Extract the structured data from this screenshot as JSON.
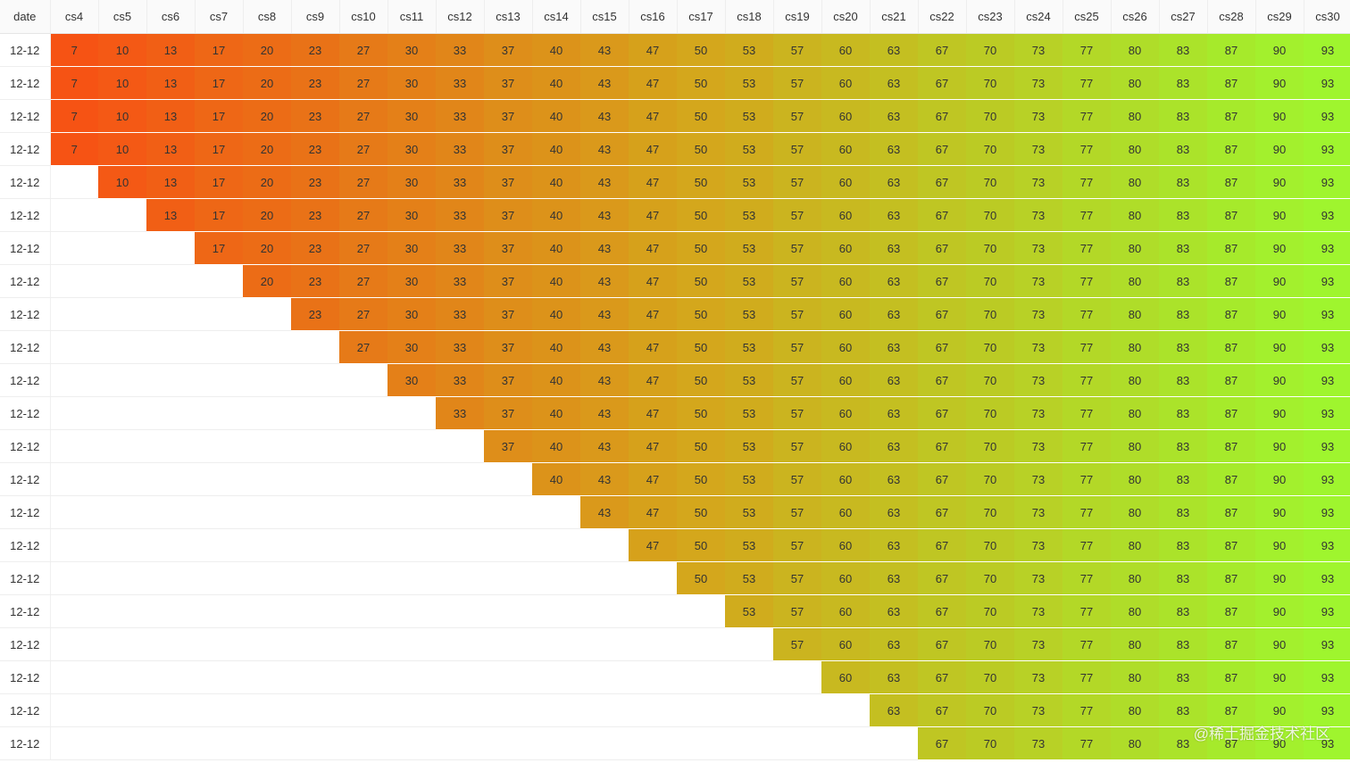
{
  "table": {
    "header": [
      "date",
      "cs4",
      "cs5",
      "cs6",
      "cs7",
      "cs8",
      "cs9",
      "cs10",
      "cs11",
      "cs12",
      "cs13",
      "cs14",
      "cs15",
      "cs16",
      "cs17",
      "cs18",
      "cs19",
      "cs20",
      "cs21",
      "cs22",
      "cs23",
      "cs24",
      "cs25",
      "cs26",
      "cs27",
      "cs28",
      "cs29",
      "cs30"
    ],
    "rows": [
      {
        "date": "12-12",
        "values": [
          "7",
          "10",
          "13",
          "17",
          "20",
          "23",
          "27",
          "30",
          "33",
          "37",
          "40",
          "43",
          "47",
          "50",
          "53",
          "57",
          "60",
          "63",
          "67",
          "70",
          "73",
          "77",
          "80",
          "83",
          "87",
          "90",
          "93"
        ]
      },
      {
        "date": "12-12",
        "values": [
          "7",
          "10",
          "13",
          "17",
          "20",
          "23",
          "27",
          "30",
          "33",
          "37",
          "40",
          "43",
          "47",
          "50",
          "53",
          "57",
          "60",
          "63",
          "67",
          "70",
          "73",
          "77",
          "80",
          "83",
          "87",
          "90",
          "93"
        ]
      },
      {
        "date": "12-12",
        "values": [
          "7",
          "10",
          "13",
          "17",
          "20",
          "23",
          "27",
          "30",
          "33",
          "37",
          "40",
          "43",
          "47",
          "50",
          "53",
          "57",
          "60",
          "63",
          "67",
          "70",
          "73",
          "77",
          "80",
          "83",
          "87",
          "90",
          "93"
        ]
      },
      {
        "date": "12-12",
        "values": [
          "7",
          "10",
          "13",
          "17",
          "20",
          "23",
          "27",
          "30",
          "33",
          "37",
          "40",
          "43",
          "47",
          "50",
          "53",
          "57",
          "60",
          "63",
          "67",
          "70",
          "73",
          "77",
          "80",
          "83",
          "87",
          "90",
          "93"
        ]
      },
      {
        "date": "12-12",
        "values": [
          "",
          "10",
          "13",
          "17",
          "20",
          "23",
          "27",
          "30",
          "33",
          "37",
          "40",
          "43",
          "47",
          "50",
          "53",
          "57",
          "60",
          "63",
          "67",
          "70",
          "73",
          "77",
          "80",
          "83",
          "87",
          "90",
          "93"
        ]
      },
      {
        "date": "12-12",
        "values": [
          "",
          "",
          "13",
          "17",
          "20",
          "23",
          "27",
          "30",
          "33",
          "37",
          "40",
          "43",
          "47",
          "50",
          "53",
          "57",
          "60",
          "63",
          "67",
          "70",
          "73",
          "77",
          "80",
          "83",
          "87",
          "90",
          "93"
        ]
      },
      {
        "date": "12-12",
        "values": [
          "",
          "",
          "",
          "17",
          "20",
          "23",
          "27",
          "30",
          "33",
          "37",
          "40",
          "43",
          "47",
          "50",
          "53",
          "57",
          "60",
          "63",
          "67",
          "70",
          "73",
          "77",
          "80",
          "83",
          "87",
          "90",
          "93"
        ]
      },
      {
        "date": "12-12",
        "values": [
          "",
          "",
          "",
          "",
          "20",
          "23",
          "27",
          "30",
          "33",
          "37",
          "40",
          "43",
          "47",
          "50",
          "53",
          "57",
          "60",
          "63",
          "67",
          "70",
          "73",
          "77",
          "80",
          "83",
          "87",
          "90",
          "93"
        ]
      },
      {
        "date": "12-12",
        "values": [
          "",
          "",
          "",
          "",
          "",
          "23",
          "27",
          "30",
          "33",
          "37",
          "40",
          "43",
          "47",
          "50",
          "53",
          "57",
          "60",
          "63",
          "67",
          "70",
          "73",
          "77",
          "80",
          "83",
          "87",
          "90",
          "93"
        ]
      },
      {
        "date": "12-12",
        "values": [
          "",
          "",
          "",
          "",
          "",
          "",
          "27",
          "30",
          "33",
          "37",
          "40",
          "43",
          "47",
          "50",
          "53",
          "57",
          "60",
          "63",
          "67",
          "70",
          "73",
          "77",
          "80",
          "83",
          "87",
          "90",
          "93"
        ]
      },
      {
        "date": "12-12",
        "values": [
          "",
          "",
          "",
          "",
          "",
          "",
          "",
          "30",
          "33",
          "37",
          "40",
          "43",
          "47",
          "50",
          "53",
          "57",
          "60",
          "63",
          "67",
          "70",
          "73",
          "77",
          "80",
          "83",
          "87",
          "90",
          "93"
        ]
      },
      {
        "date": "12-12",
        "values": [
          "",
          "",
          "",
          "",
          "",
          "",
          "",
          "",
          "33",
          "37",
          "40",
          "43",
          "47",
          "50",
          "53",
          "57",
          "60",
          "63",
          "67",
          "70",
          "73",
          "77",
          "80",
          "83",
          "87",
          "90",
          "93"
        ]
      },
      {
        "date": "12-12",
        "values": [
          "",
          "",
          "",
          "",
          "",
          "",
          "",
          "",
          "",
          "37",
          "40",
          "43",
          "47",
          "50",
          "53",
          "57",
          "60",
          "63",
          "67",
          "70",
          "73",
          "77",
          "80",
          "83",
          "87",
          "90",
          "93"
        ]
      },
      {
        "date": "12-12",
        "values": [
          "",
          "",
          "",
          "",
          "",
          "",
          "",
          "",
          "",
          "",
          "40",
          "43",
          "47",
          "50",
          "53",
          "57",
          "60",
          "63",
          "67",
          "70",
          "73",
          "77",
          "80",
          "83",
          "87",
          "90",
          "93"
        ]
      },
      {
        "date": "12-12",
        "values": [
          "",
          "",
          "",
          "",
          "",
          "",
          "",
          "",
          "",
          "",
          "",
          "43",
          "47",
          "50",
          "53",
          "57",
          "60",
          "63",
          "67",
          "70",
          "73",
          "77",
          "80",
          "83",
          "87",
          "90",
          "93"
        ]
      },
      {
        "date": "12-12",
        "values": [
          "",
          "",
          "",
          "",
          "",
          "",
          "",
          "",
          "",
          "",
          "",
          "",
          "47",
          "50",
          "53",
          "57",
          "60",
          "63",
          "67",
          "70",
          "73",
          "77",
          "80",
          "83",
          "87",
          "90",
          "93"
        ]
      },
      {
        "date": "12-12",
        "values": [
          "",
          "",
          "",
          "",
          "",
          "",
          "",
          "",
          "",
          "",
          "",
          "",
          "",
          "50",
          "53",
          "57",
          "60",
          "63",
          "67",
          "70",
          "73",
          "77",
          "80",
          "83",
          "87",
          "90",
          "93"
        ]
      },
      {
        "date": "12-12",
        "values": [
          "",
          "",
          "",
          "",
          "",
          "",
          "",
          "",
          "",
          "",
          "",
          "",
          "",
          "",
          "53",
          "57",
          "60",
          "63",
          "67",
          "70",
          "73",
          "77",
          "80",
          "83",
          "87",
          "90",
          "93"
        ]
      },
      {
        "date": "12-12",
        "values": [
          "",
          "",
          "",
          "",
          "",
          "",
          "",
          "",
          "",
          "",
          "",
          "",
          "",
          "",
          "",
          "57",
          "60",
          "63",
          "67",
          "70",
          "73",
          "77",
          "80",
          "83",
          "87",
          "90",
          "93"
        ]
      },
      {
        "date": "12-12",
        "values": [
          "",
          "",
          "",
          "",
          "",
          "",
          "",
          "",
          "",
          "",
          "",
          "",
          "",
          "",
          "",
          "",
          "60",
          "63",
          "67",
          "70",
          "73",
          "77",
          "80",
          "83",
          "87",
          "90",
          "93"
        ]
      },
      {
        "date": "12-12",
        "values": [
          "",
          "",
          "",
          "",
          "",
          "",
          "",
          "",
          "",
          "",
          "",
          "",
          "",
          "",
          "",
          "",
          "",
          "63",
          "67",
          "70",
          "73",
          "77",
          "80",
          "83",
          "87",
          "90",
          "93"
        ]
      },
      {
        "date": "12-12",
        "values": [
          "",
          "",
          "",
          "",
          "",
          "",
          "",
          "",
          "",
          "",
          "",
          "",
          "",
          "",
          "",
          "",
          "",
          "",
          "67",
          "70",
          "73",
          "77",
          "80",
          "83",
          "87",
          "90",
          "93"
        ]
      }
    ]
  },
  "colors": {
    "scale_low": "#f65314",
    "scale_mid": "#d4a71c",
    "scale_high": "#9ff52e"
  },
  "watermark": "@稀土掘金技术社区"
}
